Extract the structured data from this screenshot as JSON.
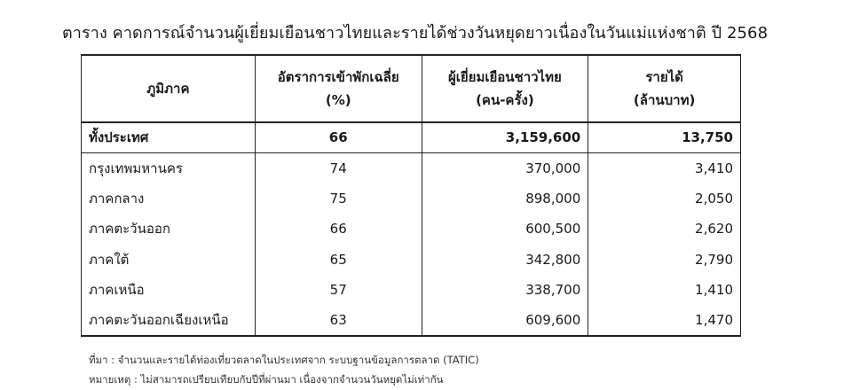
{
  "title": "ตาราง คาดการณ์จำนวนผู้เยี่ยมเยือนชาวไทยและรายได้ช่วงวันหยุดยาวเนื่องในวันแม่แห่งชาติ ปี 2568",
  "table": {
    "headers": {
      "region": "ภูมิภาค",
      "rate_line1": "อัตราการเข้าพักเฉลี่ย",
      "rate_line2": "(%)",
      "visitors_line1": "ผู้เยี่ยมเยือนชาวไทย",
      "visitors_line2": "(คน-ครั้ง)",
      "income_line1": "รายได้",
      "income_line2": "(ล้านบาท)"
    },
    "rows": [
      {
        "region": "ทั้งประเทศ",
        "rate": "66",
        "visitors": "3,159,600",
        "income": "13,750"
      },
      {
        "region": "กรุงเทพมหานคร",
        "rate": "74",
        "visitors": "370,000",
        "income": "3,410"
      },
      {
        "region": "ภาคกลาง",
        "rate": "75",
        "visitors": "898,000",
        "income": "2,050"
      },
      {
        "region": "ภาคตะวันออก",
        "rate": "66",
        "visitors": "600,500",
        "income": "2,620"
      },
      {
        "region": "ภาคใต้",
        "rate": "65",
        "visitors": "342,800",
        "income": "2,790"
      },
      {
        "region": "ภาคเหนือ",
        "rate": "57",
        "visitors": "338,700",
        "income": "1,410"
      },
      {
        "region": "ภาคตะวันออกเฉียงเหนือ",
        "rate": "63",
        "visitors": "609,600",
        "income": "1,470"
      }
    ]
  },
  "notes": {
    "source": "ที่มา : จำนวนและรายได้ท่องเที่ยวตลาดในประเทศจาก ระบบฐานข้อมูลการตลาด (TATIC)",
    "remark": "หมายเหตุ : ไม่สามารถเปรียบเทียบกับปีที่ผ่านมา เนื่องจากจำนวนวันหยุดไม่เท่ากัน"
  }
}
